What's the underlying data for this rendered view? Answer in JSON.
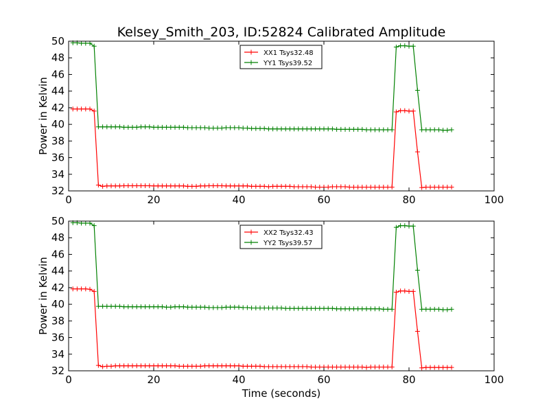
{
  "chart_data": [
    {
      "type": "line",
      "title": "Kelsey_Smith_203, ID:52824 Calibrated Amplitude",
      "xlabel": "",
      "ylabel": "Power in Kelvin",
      "xlim": [
        0,
        100
      ],
      "ylim": [
        32,
        50
      ],
      "xticks": [
        "0",
        "20",
        "40",
        "60",
        "80",
        "100"
      ],
      "yticks": [
        "32",
        "34",
        "36",
        "38",
        "40",
        "42",
        "44",
        "46",
        "48",
        "50"
      ],
      "legend_position": "top-center",
      "grid": false,
      "series": [
        {
          "name": "XX1 Tsys32.48",
          "color": "#ff0000",
          "x": [
            1,
            2,
            3,
            4,
            5,
            6,
            7,
            8,
            9,
            10,
            11,
            12,
            13,
            14,
            15,
            16,
            17,
            18,
            19,
            20,
            21,
            22,
            23,
            24,
            25,
            26,
            27,
            28,
            29,
            30,
            31,
            32,
            33,
            34,
            35,
            36,
            37,
            38,
            39,
            40,
            41,
            42,
            43,
            44,
            45,
            46,
            47,
            48,
            49,
            50,
            51,
            52,
            53,
            54,
            55,
            56,
            57,
            58,
            59,
            60,
            61,
            62,
            63,
            64,
            65,
            66,
            67,
            68,
            69,
            70,
            71,
            72,
            73,
            74,
            75,
            76,
            77,
            78,
            79,
            80,
            81,
            82,
            83,
            84,
            85,
            86,
            87,
            88,
            89,
            90
          ],
          "y": [
            41.85,
            41.85,
            41.85,
            41.85,
            41.85,
            41.6,
            32.7,
            32.55,
            32.6,
            32.6,
            32.6,
            32.6,
            32.62,
            32.62,
            32.62,
            32.62,
            32.62,
            32.62,
            32.62,
            32.6,
            32.6,
            32.6,
            32.6,
            32.6,
            32.6,
            32.6,
            32.6,
            32.55,
            32.55,
            32.55,
            32.6,
            32.6,
            32.62,
            32.62,
            32.62,
            32.62,
            32.6,
            32.6,
            32.6,
            32.6,
            32.6,
            32.6,
            32.55,
            32.55,
            32.55,
            32.55,
            32.5,
            32.55,
            32.55,
            32.55,
            32.55,
            32.55,
            32.5,
            32.5,
            32.5,
            32.5,
            32.5,
            32.45,
            32.45,
            32.45,
            32.45,
            32.5,
            32.5,
            32.5,
            32.5,
            32.45,
            32.45,
            32.45,
            32.45,
            32.45,
            32.45,
            32.45,
            32.45,
            32.45,
            32.45,
            32.45,
            41.5,
            41.65,
            41.65,
            41.6,
            41.6,
            36.7,
            32.4,
            32.45,
            32.45,
            32.45,
            32.45,
            32.45,
            32.45,
            32.45
          ]
        },
        {
          "name": "YY1 Tsys39.52",
          "color": "#008000",
          "x": [
            1,
            2,
            3,
            4,
            5,
            6,
            7,
            8,
            9,
            10,
            11,
            12,
            13,
            14,
            15,
            16,
            17,
            18,
            19,
            20,
            21,
            22,
            23,
            24,
            25,
            26,
            27,
            28,
            29,
            30,
            31,
            32,
            33,
            34,
            35,
            36,
            37,
            38,
            39,
            40,
            41,
            42,
            43,
            44,
            45,
            46,
            47,
            48,
            49,
            50,
            51,
            52,
            53,
            54,
            55,
            56,
            57,
            58,
            59,
            60,
            61,
            62,
            63,
            64,
            65,
            66,
            67,
            68,
            69,
            70,
            71,
            72,
            73,
            74,
            75,
            76,
            77,
            78,
            79,
            80,
            81,
            82,
            83,
            84,
            85,
            86,
            87,
            88,
            89,
            90
          ],
          "y": [
            49.8,
            49.8,
            49.75,
            49.75,
            49.75,
            49.4,
            39.7,
            39.7,
            39.7,
            39.7,
            39.7,
            39.7,
            39.65,
            39.65,
            39.65,
            39.65,
            39.7,
            39.7,
            39.7,
            39.65,
            39.65,
            39.65,
            39.65,
            39.65,
            39.65,
            39.65,
            39.65,
            39.6,
            39.6,
            39.6,
            39.6,
            39.6,
            39.55,
            39.55,
            39.55,
            39.55,
            39.6,
            39.6,
            39.6,
            39.6,
            39.55,
            39.55,
            39.5,
            39.5,
            39.5,
            39.5,
            39.45,
            39.45,
            39.45,
            39.45,
            39.45,
            39.45,
            39.45,
            39.45,
            39.45,
            39.45,
            39.45,
            39.45,
            39.45,
            39.45,
            39.45,
            39.45,
            39.4,
            39.4,
            39.4,
            39.4,
            39.4,
            39.4,
            39.4,
            39.35,
            39.35,
            39.35,
            39.35,
            39.35,
            39.35,
            39.35,
            49.3,
            49.45,
            49.45,
            49.4,
            49.4,
            44.1,
            39.35,
            39.35,
            39.35,
            39.35,
            39.35,
            39.3,
            39.3,
            39.35
          ]
        }
      ]
    },
    {
      "type": "line",
      "title": "",
      "xlabel": "Time (seconds)",
      "ylabel": "Power in Kelvin",
      "xlim": [
        0,
        100
      ],
      "ylim": [
        32,
        50
      ],
      "xticks": [
        "0",
        "20",
        "40",
        "60",
        "80",
        "100"
      ],
      "yticks": [
        "32",
        "34",
        "36",
        "38",
        "40",
        "42",
        "44",
        "46",
        "48",
        "50"
      ],
      "legend_position": "top-center",
      "grid": false,
      "series": [
        {
          "name": "XX2 Tsys32.43",
          "color": "#ff0000",
          "x": [
            1,
            2,
            3,
            4,
            5,
            6,
            7,
            8,
            9,
            10,
            11,
            12,
            13,
            14,
            15,
            16,
            17,
            18,
            19,
            20,
            21,
            22,
            23,
            24,
            25,
            26,
            27,
            28,
            29,
            30,
            31,
            32,
            33,
            34,
            35,
            36,
            37,
            38,
            39,
            40,
            41,
            42,
            43,
            44,
            45,
            46,
            47,
            48,
            49,
            50,
            51,
            52,
            53,
            54,
            55,
            56,
            57,
            58,
            59,
            60,
            61,
            62,
            63,
            64,
            65,
            66,
            67,
            68,
            69,
            70,
            71,
            72,
            73,
            74,
            75,
            76,
            77,
            78,
            79,
            80,
            81,
            82,
            83,
            84,
            85,
            86,
            87,
            88,
            89,
            90
          ],
          "y": [
            41.85,
            41.85,
            41.85,
            41.85,
            41.8,
            41.55,
            32.65,
            32.5,
            32.55,
            32.55,
            32.6,
            32.6,
            32.6,
            32.6,
            32.6,
            32.6,
            32.6,
            32.6,
            32.6,
            32.6,
            32.6,
            32.6,
            32.6,
            32.6,
            32.6,
            32.55,
            32.55,
            32.55,
            32.55,
            32.55,
            32.55,
            32.6,
            32.6,
            32.6,
            32.6,
            32.6,
            32.6,
            32.6,
            32.6,
            32.6,
            32.55,
            32.55,
            32.55,
            32.55,
            32.55,
            32.5,
            32.5,
            32.5,
            32.5,
            32.5,
            32.5,
            32.5,
            32.5,
            32.5,
            32.5,
            32.5,
            32.45,
            32.45,
            32.45,
            32.45,
            32.45,
            32.45,
            32.45,
            32.45,
            32.45,
            32.45,
            32.45,
            32.45,
            32.45,
            32.4,
            32.45,
            32.45,
            32.45,
            32.45,
            32.45,
            32.45,
            41.45,
            41.6,
            41.6,
            41.55,
            41.55,
            36.75,
            32.35,
            32.4,
            32.4,
            32.4,
            32.4,
            32.4,
            32.4,
            32.4
          ]
        },
        {
          "name": "YY2 Tsys39.57",
          "color": "#008000",
          "x": [
            1,
            2,
            3,
            4,
            5,
            6,
            7,
            8,
            9,
            10,
            11,
            12,
            13,
            14,
            15,
            16,
            17,
            18,
            19,
            20,
            21,
            22,
            23,
            24,
            25,
            26,
            27,
            28,
            29,
            30,
            31,
            32,
            33,
            34,
            35,
            36,
            37,
            38,
            39,
            40,
            41,
            42,
            43,
            44,
            45,
            46,
            47,
            48,
            49,
            50,
            51,
            52,
            53,
            54,
            55,
            56,
            57,
            58,
            59,
            60,
            61,
            62,
            63,
            64,
            65,
            66,
            67,
            68,
            69,
            70,
            71,
            72,
            73,
            74,
            75,
            76,
            77,
            78,
            79,
            80,
            81,
            82,
            83,
            84,
            85,
            86,
            87,
            88,
            89,
            90
          ],
          "y": [
            49.8,
            49.8,
            49.75,
            49.75,
            49.75,
            49.45,
            39.75,
            39.75,
            39.75,
            39.75,
            39.75,
            39.75,
            39.7,
            39.7,
            39.7,
            39.7,
            39.7,
            39.7,
            39.7,
            39.7,
            39.7,
            39.7,
            39.65,
            39.65,
            39.7,
            39.7,
            39.7,
            39.65,
            39.65,
            39.65,
            39.65,
            39.65,
            39.6,
            39.6,
            39.6,
            39.6,
            39.65,
            39.65,
            39.65,
            39.65,
            39.6,
            39.6,
            39.55,
            39.55,
            39.55,
            39.55,
            39.55,
            39.55,
            39.55,
            39.55,
            39.5,
            39.5,
            39.5,
            39.5,
            39.5,
            39.5,
            39.5,
            39.5,
            39.5,
            39.5,
            39.5,
            39.5,
            39.45,
            39.45,
            39.45,
            39.45,
            39.45,
            39.45,
            39.45,
            39.45,
            39.45,
            39.45,
            39.45,
            39.4,
            39.4,
            39.4,
            49.25,
            49.45,
            49.45,
            49.4,
            49.4,
            44.1,
            39.4,
            39.4,
            39.4,
            39.4,
            39.4,
            39.35,
            39.35,
            39.4
          ]
        }
      ]
    }
  ]
}
